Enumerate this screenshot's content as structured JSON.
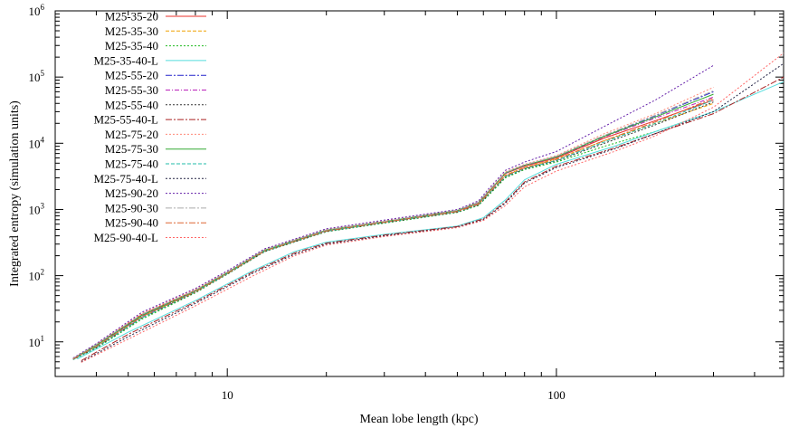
{
  "chart_data": {
    "type": "line",
    "xlabel": "Mean lobe length (kpc)",
    "ylabel": "Integrated entropy (simulation units)",
    "x_scale": "log",
    "y_scale": "log",
    "xlim": [
      3,
      490
    ],
    "ylim": [
      3,
      1000000
    ],
    "x_ticks": [
      {
        "value": 10,
        "label": "10"
      },
      {
        "value": 100,
        "label": "100"
      }
    ],
    "y_ticks": [
      {
        "value": 10,
        "base": "10",
        "exp": "1"
      },
      {
        "value": 100,
        "base": "10",
        "exp": "2"
      },
      {
        "value": 1000,
        "base": "10",
        "exp": "3"
      },
      {
        "value": 10000,
        "base": "10",
        "exp": "4"
      },
      {
        "value": 100000,
        "base": "10",
        "exp": "5"
      },
      {
        "value": 1000000,
        "base": "10",
        "exp": "6"
      }
    ],
    "legend_position": "top-left",
    "grid": false,
    "series": [
      {
        "name": "M25-35-20",
        "color": "#e8302a",
        "dash": "",
        "x": [
          3.4,
          4,
          5.5,
          8,
          10,
          13,
          20,
          30,
          50,
          58,
          62,
          70,
          80,
          100,
          140,
          200,
          300
        ],
        "y": [
          5.6,
          9,
          26,
          60,
          110,
          240,
          480,
          650,
          950,
          1250,
          1800,
          3500,
          4500,
          6000,
          12000,
          22000,
          45000
        ]
      },
      {
        "name": "M25-35-30",
        "color": "#f0a000",
        "dash": "4,2",
        "x": [
          3.4,
          4,
          5.5,
          8,
          10,
          13,
          20,
          30,
          50,
          58,
          62,
          70,
          80,
          100,
          140,
          200,
          300
        ],
        "y": [
          5.5,
          8.5,
          24,
          58,
          108,
          235,
          470,
          640,
          930,
          1200,
          1700,
          3300,
          4300,
          5800,
          11000,
          20000,
          40000
        ]
      },
      {
        "name": "M25-35-40",
        "color": "#22bb22",
        "dash": "2,2",
        "x": [
          3.4,
          4,
          5.5,
          8,
          10,
          13,
          20,
          30,
          50,
          58,
          62,
          70,
          80,
          100,
          140,
          200,
          300
        ],
        "y": [
          5.4,
          8,
          22,
          55,
          105,
          230,
          460,
          620,
          900,
          1150,
          1600,
          3000,
          4000,
          5200,
          9000,
          15000,
          30000
        ]
      },
      {
        "name": "M25-35-40-L",
        "color": "#55dddd",
        "dash": "",
        "x": [
          3.5,
          5,
          8,
          12,
          16,
          20,
          30,
          50,
          60,
          70,
          80,
          100,
          150,
          200,
          300,
          490
        ],
        "y": [
          5.5,
          14,
          42,
          120,
          230,
          320,
          420,
          560,
          750,
          1400,
          2800,
          4800,
          9000,
          15000,
          30000,
          85000
        ]
      },
      {
        "name": "M25-55-20",
        "color": "#2222cc",
        "dash": "7,2,2,2",
        "x": [
          3.4,
          4,
          5.5,
          8,
          10,
          13,
          20,
          30,
          50,
          58,
          62,
          70,
          80,
          100,
          140,
          200,
          300
        ],
        "y": [
          5.6,
          9,
          25,
          60,
          112,
          245,
          490,
          660,
          970,
          1280,
          1850,
          3600,
          4700,
          6300,
          13000,
          26000,
          60000
        ]
      },
      {
        "name": "M25-55-30",
        "color": "#bb22bb",
        "dash": "5,2,1,2",
        "x": [
          3.4,
          4,
          5.5,
          8,
          10,
          13,
          20,
          30,
          50,
          58,
          62,
          70,
          80,
          100,
          140,
          200,
          300
        ],
        "y": [
          5.5,
          8.8,
          24,
          58,
          110,
          240,
          480,
          650,
          960,
          1260,
          1820,
          3500,
          4600,
          6100,
          12500,
          24000,
          50000
        ]
      },
      {
        "name": "M25-55-40",
        "color": "#333333",
        "dash": "2,2",
        "x": [
          3.4,
          4,
          5.5,
          8,
          10,
          13,
          20,
          30,
          50,
          58,
          62,
          70,
          80,
          100,
          140,
          200,
          300
        ],
        "y": [
          5.4,
          8.2,
          23,
          56,
          106,
          232,
          465,
          630,
          910,
          1170,
          1650,
          3100,
          4100,
          5400,
          10000,
          19000,
          42000
        ]
      },
      {
        "name": "M25-55-40-L",
        "color": "#aa2222",
        "dash": "7,2,2,2",
        "x": [
          3.6,
          5,
          8,
          12,
          16,
          20,
          30,
          50,
          60,
          70,
          80,
          100,
          150,
          200,
          300,
          490
        ],
        "y": [
          5.2,
          13,
          40,
          115,
          220,
          310,
          410,
          550,
          720,
          1300,
          2600,
          4500,
          8500,
          14000,
          28000,
          100000
        ]
      },
      {
        "name": "M25-75-20",
        "color": "#ff8877",
        "dash": "2,2",
        "x": [
          3.4,
          4,
          5.5,
          8,
          10,
          13,
          20,
          30,
          50,
          58,
          62,
          70,
          80,
          100,
          140,
          200,
          300
        ],
        "y": [
          5.6,
          9.2,
          27,
          62,
          115,
          250,
          500,
          670,
          980,
          1300,
          1900,
          3700,
          4800,
          6500,
          14000,
          28000,
          70000
        ]
      },
      {
        "name": "M25-75-30",
        "color": "#33aa33",
        "dash": "",
        "x": [
          3.4,
          4,
          5.5,
          8,
          10,
          13,
          20,
          30,
          50,
          58,
          62,
          70,
          80,
          100,
          140,
          200,
          300
        ],
        "y": [
          5.5,
          8.9,
          25,
          59,
          111,
          242,
          485,
          655,
          965,
          1270,
          1830,
          3550,
          4650,
          6200,
          12800,
          25000,
          55000
        ]
      },
      {
        "name": "M25-75-40",
        "color": "#22bbaa",
        "dash": "4,2",
        "x": [
          3.4,
          4,
          5.5,
          8,
          10,
          13,
          20,
          30,
          50,
          58,
          62,
          70,
          80,
          100,
          140,
          200,
          300
        ],
        "y": [
          5.4,
          8.3,
          23,
          57,
          107,
          234,
          468,
          635,
          920,
          1180,
          1680,
          3150,
          4150,
          5500,
          10500,
          20000,
          45000
        ]
      },
      {
        "name": "M25-75-40-L",
        "color": "#222244",
        "dash": "2,2",
        "x": [
          3.6,
          5,
          8,
          12,
          16,
          20,
          30,
          50,
          60,
          70,
          80,
          100,
          150,
          200,
          300,
          490
        ],
        "y": [
          5.0,
          12,
          38,
          110,
          210,
          300,
          400,
          540,
          700,
          1250,
          2500,
          4300,
          8200,
          14000,
          30000,
          160000
        ]
      },
      {
        "name": "M25-90-20",
        "color": "#6622aa",
        "dash": "2,2",
        "x": [
          3.4,
          4,
          5.5,
          8,
          10,
          13,
          20,
          30,
          50,
          58,
          62,
          70,
          80,
          100,
          140,
          200,
          300
        ],
        "y": [
          5.7,
          9.4,
          28,
          64,
          118,
          255,
          510,
          690,
          1000,
          1350,
          2000,
          3900,
          5200,
          7500,
          18000,
          45000,
          150000
        ]
      },
      {
        "name": "M25-90-30",
        "color": "#aaaaaa",
        "dash": "7,2,2,2",
        "x": [
          3.4,
          4,
          5.5,
          8,
          10,
          13,
          20,
          30,
          50,
          58,
          62,
          70,
          80,
          100,
          140,
          200,
          300
        ],
        "y": [
          5.6,
          9.1,
          26,
          60,
          113,
          246,
          492,
          662,
          972,
          1285,
          1860,
          3620,
          4720,
          6350,
          13200,
          26500,
          62000
        ]
      },
      {
        "name": "M25-90-40",
        "color": "#dd6633",
        "dash": "7,2,2,2",
        "x": [
          3.4,
          4,
          5.5,
          8,
          10,
          13,
          20,
          30,
          50,
          58,
          62,
          70,
          80,
          100,
          140,
          200,
          300
        ],
        "y": [
          5.5,
          8.5,
          24,
          57,
          108,
          236,
          472,
          640,
          930,
          1200,
          1720,
          3250,
          4250,
          5700,
          11000,
          21000,
          48000
        ]
      },
      {
        "name": "M25-90-40-L",
        "color": "#ff6666",
        "dash": "2,2",
        "x": [
          3.6,
          5,
          8,
          12,
          16,
          20,
          30,
          50,
          60,
          70,
          80,
          100,
          150,
          200,
          300,
          490
        ],
        "y": [
          4.9,
          11,
          35,
          100,
          200,
          290,
          390,
          530,
          680,
          1150,
          2200,
          3800,
          7500,
          13000,
          35000,
          230000
        ]
      }
    ]
  }
}
